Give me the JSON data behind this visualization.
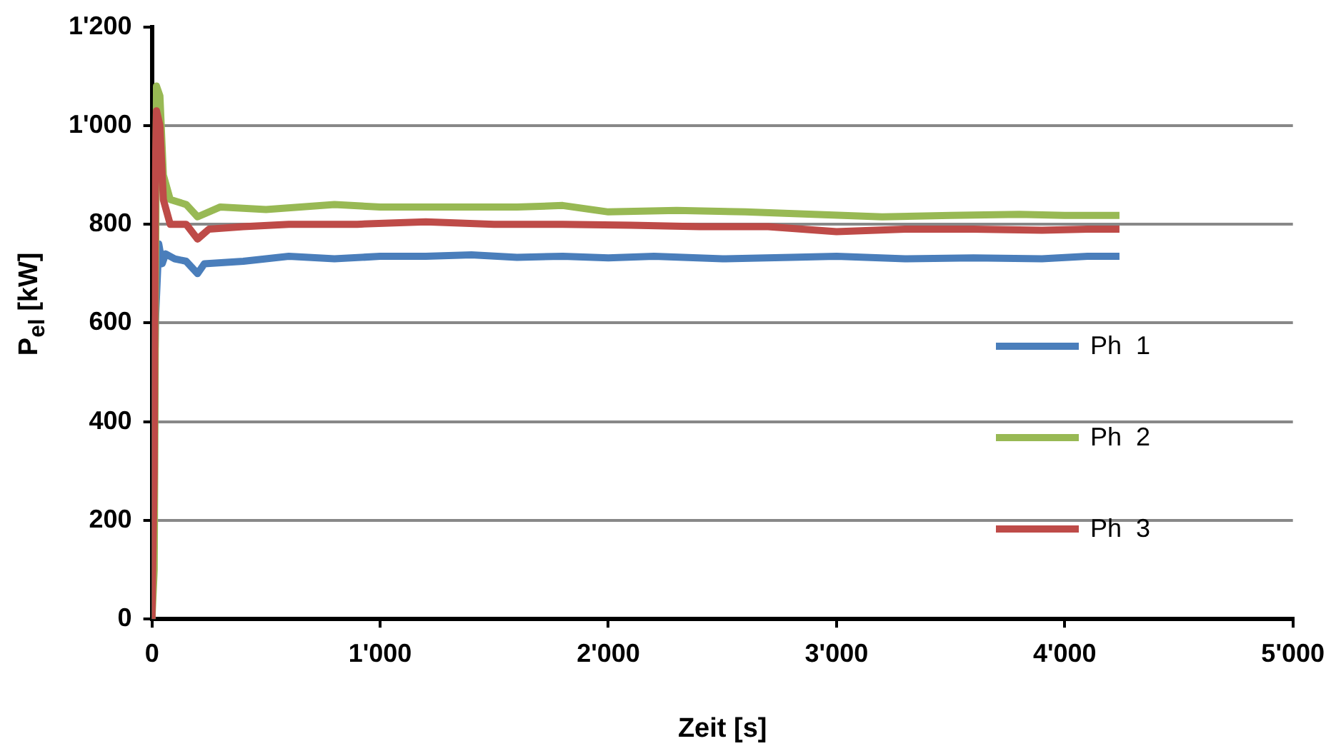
{
  "chart_data": {
    "type": "line",
    "xlabel": "Zeit [s]",
    "ylabel": "P$_{el}$ [kW]",
    "xlim": [
      0,
      5000
    ],
    "xticks": [
      0,
      {
        "value": 1000,
        "label": "1'000"
      },
      {
        "value": 2000,
        "label": "2'000"
      },
      {
        "value": 3000,
        "label": "3'000"
      },
      {
        "value": 4000,
        "label": "4'000"
      },
      {
        "value": 5000,
        "label": "5'000"
      }
    ],
    "ylim": [
      0,
      1200
    ],
    "yticks": [
      0,
      200,
      400,
      600,
      800,
      {
        "value": 1000,
        "label": "1'000"
      },
      {
        "value": 1200,
        "label": "1'200"
      }
    ],
    "grid": "y",
    "legend": "right",
    "marker": "none",
    "line_style": "solid",
    "series": [
      {
        "name": "Ph  1",
        "color": "#4a7ebb",
        "x": [
          0,
          15,
          30,
          45,
          60,
          100,
          150,
          200,
          230,
          400,
          600,
          800,
          1000,
          1200,
          1400,
          1600,
          1800,
          2000,
          2200,
          2500,
          2800,
          3000,
          3300,
          3600,
          3900,
          4100,
          4240
        ],
        "values": [
          0,
          600,
          760,
          720,
          740,
          730,
          725,
          700,
          720,
          725,
          735,
          730,
          735,
          735,
          738,
          733,
          735,
          732,
          735,
          730,
          733,
          735,
          730,
          732,
          730,
          735,
          735
        ]
      },
      {
        "name": "Ph  2",
        "color": "#98b954",
        "x": [
          0,
          10,
          15,
          20,
          35,
          50,
          80,
          150,
          200,
          300,
          500,
          800,
          1000,
          1300,
          1600,
          1800,
          2000,
          2300,
          2600,
          2900,
          3200,
          3500,
          3800,
          4000,
          4240
        ],
        "values": [
          0,
          100,
          600,
          1080,
          1060,
          900,
          850,
          840,
          815,
          835,
          830,
          840,
          835,
          835,
          835,
          838,
          825,
          828,
          825,
          820,
          815,
          818,
          820,
          818,
          818
        ]
      },
      {
        "name": "Ph  3",
        "color": "#be4b48",
        "x": [
          0,
          10,
          15,
          20,
          35,
          50,
          80,
          150,
          200,
          250,
          400,
          600,
          900,
          1200,
          1500,
          1800,
          2100,
          2400,
          2700,
          3000,
          3300,
          3600,
          3900,
          4100,
          4240
        ],
        "values": [
          0,
          300,
          900,
          1030,
          1000,
          850,
          800,
          800,
          770,
          790,
          795,
          800,
          800,
          805,
          800,
          800,
          798,
          795,
          795,
          785,
          790,
          790,
          788,
          790,
          790
        ]
      }
    ]
  }
}
